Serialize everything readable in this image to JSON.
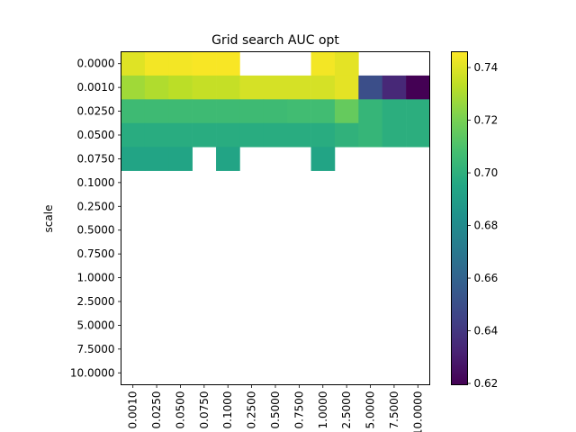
{
  "chart_data": {
    "type": "heatmap",
    "title": "Grid search AUC opt",
    "ylabel": "scale",
    "xlabel": "",
    "x_tick_labels": [
      "0.0010",
      "0.0250",
      "0.0500",
      "0.0750",
      "0.1000",
      "0.2500",
      "0.5000",
      "0.7500",
      "1.0000",
      "2.5000",
      "5.0000",
      "7.5000",
      "10.0000"
    ],
    "y_tick_labels": [
      "0.0000",
      "0.0010",
      "0.0250",
      "0.0500",
      "0.0750",
      "0.1000",
      "0.2500",
      "0.5000",
      "0.7500",
      "1.0000",
      "2.5000",
      "5.0000",
      "7.5000",
      "10.0000"
    ],
    "colormap": "viridis",
    "vmin": 0.6195,
    "vmax": 0.746,
    "colorbar_ticks": [
      "0.62",
      "0.64",
      "0.66",
      "0.68",
      "0.70",
      "0.72",
      "0.74"
    ],
    "values": [
      [
        0.74,
        0.744,
        0.744,
        0.745,
        0.745,
        null,
        null,
        null,
        0.744,
        0.741,
        null,
        null,
        null
      ],
      [
        0.728,
        0.731,
        0.733,
        0.735,
        0.735,
        0.738,
        0.738,
        0.738,
        0.738,
        0.741,
        0.65,
        0.634,
        0.6195
      ],
      [
        0.706,
        0.706,
        0.706,
        0.706,
        0.706,
        0.706,
        0.706,
        0.707,
        0.707,
        0.716,
        0.703,
        0.699,
        0.699
      ],
      [
        0.698,
        0.698,
        0.698,
        0.698,
        0.698,
        0.698,
        0.698,
        0.698,
        0.698,
        0.701,
        0.703,
        0.699,
        0.699
      ],
      [
        0.694,
        0.694,
        0.694,
        null,
        0.694,
        null,
        null,
        null,
        0.694,
        null,
        null,
        null,
        null
      ],
      [
        null,
        null,
        null,
        null,
        null,
        null,
        null,
        null,
        null,
        null,
        null,
        null,
        null
      ],
      [
        null,
        null,
        null,
        null,
        null,
        null,
        null,
        null,
        null,
        null,
        null,
        null,
        null
      ],
      [
        null,
        null,
        null,
        null,
        null,
        null,
        null,
        null,
        null,
        null,
        null,
        null,
        null
      ],
      [
        null,
        null,
        null,
        null,
        null,
        null,
        null,
        null,
        null,
        null,
        null,
        null,
        null
      ],
      [
        null,
        null,
        null,
        null,
        null,
        null,
        null,
        null,
        null,
        null,
        null,
        null,
        null
      ],
      [
        null,
        null,
        null,
        null,
        null,
        null,
        null,
        null,
        null,
        null,
        null,
        null,
        null
      ],
      [
        null,
        null,
        null,
        null,
        null,
        null,
        null,
        null,
        null,
        null,
        null,
        null,
        null
      ],
      [
        null,
        null,
        null,
        null,
        null,
        null,
        null,
        null,
        null,
        null,
        null,
        null,
        null
      ],
      [
        null,
        null,
        null,
        null,
        null,
        null,
        null,
        null,
        null,
        null,
        null,
        null,
        null
      ]
    ]
  }
}
